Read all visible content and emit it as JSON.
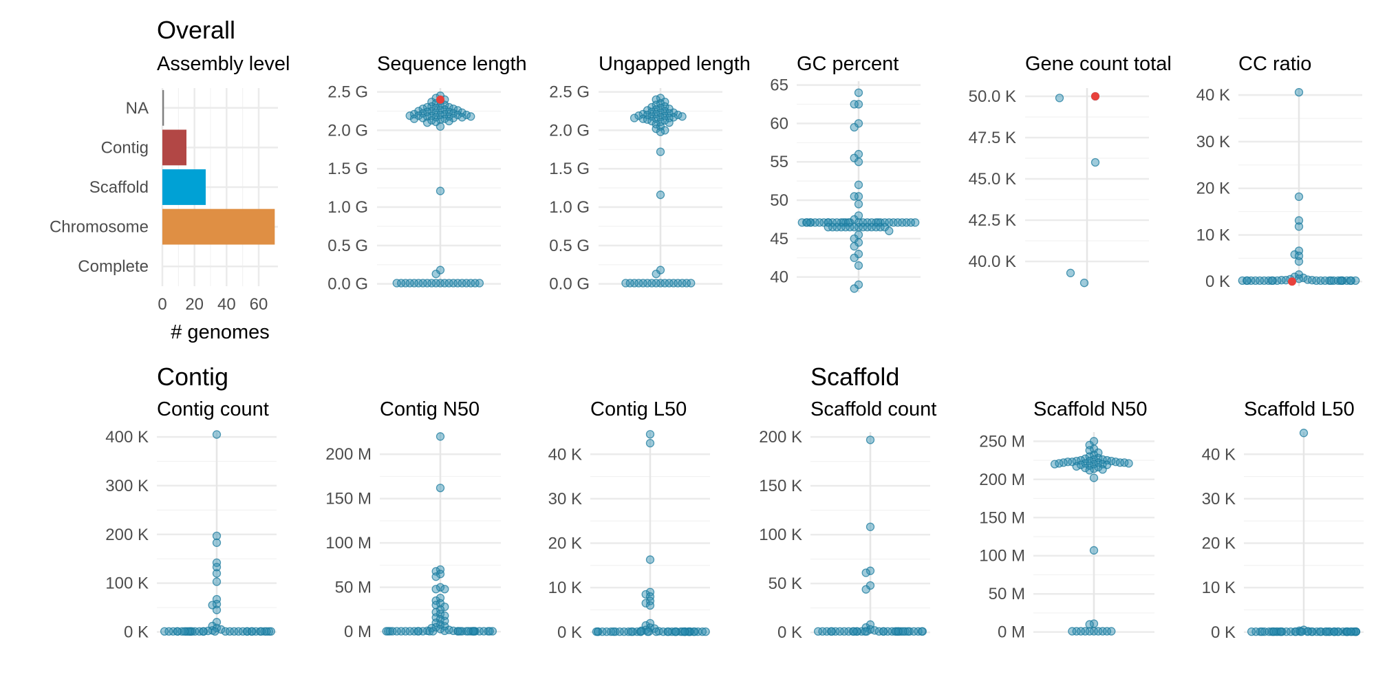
{
  "sections": [
    {
      "title": "Overall"
    },
    {
      "title": "Contig"
    },
    {
      "title": "Scaffold"
    }
  ],
  "colors": {
    "point": "#1b7a9c",
    "point_fill": "#2a8cb0",
    "highlight": "#e8413c",
    "grid": "#ebebeb",
    "bar_na": "#7f7f7f",
    "bar_contig": "#b24745",
    "bar_scaffold": "#00a1d5",
    "bar_chromosome": "#df8f44"
  },
  "chart_data": [
    {
      "id": "assembly_level",
      "type": "bar",
      "orientation": "horizontal",
      "title": "Assembly level",
      "xlabel": "# genomes",
      "ylabel": "",
      "categories": [
        "NA",
        "Contig",
        "Scaffold",
        "Chromosome",
        "Complete"
      ],
      "values": [
        1,
        15,
        27,
        70,
        0
      ],
      "bar_colors": [
        "#7f7f7f",
        "#b24745",
        "#00a1d5",
        "#df8f44",
        "#cccccc"
      ],
      "xlim": [
        0,
        72
      ],
      "xticks": [
        0,
        20,
        40,
        60
      ],
      "grid": true
    },
    {
      "id": "sequence_length",
      "type": "scatter",
      "title": "Sequence length",
      "xlabel": "",
      "ylabel": "",
      "ylim": [
        -0.03,
        2.55
      ],
      "ticks": [
        0,
        0.5,
        1.0,
        1.5,
        2.0,
        2.5
      ],
      "tick_labels": [
        "0.0 G",
        "0.5 G",
        "1.0 G",
        "1.5 G",
        "2.0 G",
        "2.5 G"
      ],
      "points": [
        2.45,
        2.42,
        2.4,
        2.38,
        2.37,
        2.35,
        2.33,
        2.32,
        2.31,
        2.3,
        2.3,
        2.29,
        2.28,
        2.28,
        2.27,
        2.26,
        2.26,
        2.25,
        2.25,
        2.24,
        2.24,
        2.23,
        2.23,
        2.22,
        2.22,
        2.21,
        2.21,
        2.2,
        2.2,
        2.2,
        2.19,
        2.19,
        2.19,
        2.18,
        2.18,
        2.18,
        2.17,
        2.17,
        2.16,
        2.16,
        2.15,
        2.15,
        2.14,
        2.13,
        2.12,
        2.11,
        2.1,
        2.05,
        1.21,
        0.18,
        0.13,
        0.01,
        0.01,
        0.01,
        0.01,
        0.01,
        0.01,
        0.01,
        0.01,
        0.01,
        0.01,
        0.01,
        0.01,
        0.01,
        0.01,
        0.01,
        0.01,
        0.01,
        0.01,
        0.01,
        0.01
      ],
      "highlight": [
        2.4
      ]
    },
    {
      "id": "ungapped_length",
      "type": "scatter",
      "title": "Ungapped length",
      "xlabel": "",
      "ylabel": "",
      "ylim": [
        -0.03,
        2.55
      ],
      "ticks": [
        0,
        0.5,
        1.0,
        1.5,
        2.0,
        2.5
      ],
      "tick_labels": [
        "0.0 G",
        "0.5 G",
        "1.0 G",
        "1.5 G",
        "2.0 G",
        "2.5 G"
      ],
      "points": [
        2.42,
        2.4,
        2.37,
        2.35,
        2.33,
        2.31,
        2.3,
        2.29,
        2.28,
        2.27,
        2.26,
        2.25,
        2.24,
        2.23,
        2.23,
        2.22,
        2.21,
        2.21,
        2.2,
        2.2,
        2.19,
        2.19,
        2.18,
        2.18,
        2.17,
        2.17,
        2.16,
        2.16,
        2.15,
        2.15,
        2.14,
        2.13,
        2.12,
        2.11,
        2.1,
        2.08,
        2.05,
        2.02,
        2.0,
        1.98,
        1.72,
        1.16,
        0.18,
        0.13,
        0.01,
        0.01,
        0.01,
        0.01,
        0.01,
        0.01,
        0.01,
        0.01,
        0.01,
        0.01,
        0.01,
        0.01,
        0.01,
        0.01,
        0.01,
        0.01
      ],
      "highlight": []
    },
    {
      "id": "gc_percent",
      "type": "scatter",
      "title": "GC percent",
      "xlabel": "",
      "ylabel": "",
      "ylim": [
        38,
        65.5
      ],
      "ticks": [
        40,
        45,
        50,
        55,
        60,
        65
      ],
      "tick_labels": [
        "40",
        "45",
        "50",
        "55",
        "60",
        "65"
      ],
      "points": [
        64,
        62.5,
        62.5,
        60,
        59.5,
        56,
        55.5,
        55,
        52,
        50.5,
        50.5,
        49.5,
        48,
        47.5,
        47.1,
        47.1,
        47.1,
        47.1,
        47.1,
        47.1,
        47.1,
        47.1,
        47.1,
        47.1,
        47.1,
        47.1,
        47.1,
        47.1,
        47.1,
        47.1,
        47.1,
        47.1,
        47.1,
        47.1,
        47.1,
        47.1,
        47.1,
        47.1,
        47.1,
        47.1,
        47.1,
        47.1,
        47.1,
        47.1,
        47.1,
        47.1,
        46.5,
        46.5,
        46.5,
        46.5,
        46.5,
        46.5,
        46.5,
        46.5,
        46.5,
        46.5,
        46.5,
        46.5,
        46.5,
        46.5,
        46,
        45.5,
        45,
        44.5,
        44,
        43,
        42.5,
        41.5,
        39,
        38.5
      ],
      "highlight": []
    },
    {
      "id": "gene_count_total",
      "type": "scatter",
      "title": "Gene count total",
      "xlabel": "",
      "ylabel": "",
      "ylim": [
        38.5,
        50.5
      ],
      "ticks": [
        40,
        42.5,
        45,
        47.5,
        50
      ],
      "tick_labels": [
        "40.0 K",
        "42.5 K",
        "45.0 K",
        "47.5 K",
        "50.0 K"
      ],
      "points": [
        49.9,
        50.0,
        46.0,
        39.3,
        38.7
      ],
      "offsets": [
        -1,
        0.3,
        0.3,
        -0.6,
        -0.1
      ],
      "highlight": [
        50.0
      ]
    },
    {
      "id": "cc_ratio",
      "type": "scatter",
      "title": "CC ratio",
      "xlabel": "",
      "ylabel": "",
      "ylim": [
        -1,
        41.5
      ],
      "ticks": [
        0,
        10,
        20,
        30,
        40
      ],
      "tick_labels": [
        "0 K",
        "10 K",
        "20 K",
        "30 K",
        "40 K"
      ],
      "points": [
        40.6,
        18.2,
        13.1,
        11.8,
        6.6,
        5.8,
        5.5,
        4.3,
        1.5,
        1.0,
        0.8,
        0.6,
        0.5,
        0.4,
        0.3,
        0.3,
        0.3,
        0.2,
        0.2,
        0.2,
        0.2,
        0.2,
        0.2,
        0.2,
        0.2,
        0.2,
        0.2,
        0.2,
        0.2,
        0.2,
        0.2,
        0.2,
        0.2,
        0.2,
        0.2,
        0.2,
        0.2,
        0.2,
        0.2,
        0.2,
        0.2,
        0.2
      ],
      "highlight": [
        0.0
      ]
    },
    {
      "id": "contig_count",
      "type": "scatter",
      "title": "Contig count",
      "xlabel": "",
      "ylabel": "",
      "ylim": [
        -5,
        410
      ],
      "ticks": [
        0,
        100,
        200,
        300,
        400
      ],
      "tick_labels": [
        "0 K",
        "100 K",
        "200 K",
        "300 K",
        "400 K"
      ],
      "points": [
        405,
        197,
        183,
        142,
        133,
        120,
        103,
        67,
        57,
        55,
        45,
        20,
        12,
        8,
        5,
        3,
        2,
        1,
        1,
        1,
        1,
        1,
        1,
        1,
        1,
        1,
        1,
        1,
        1,
        1,
        1,
        1,
        1,
        1,
        1,
        1,
        1,
        1,
        1,
        1,
        1,
        1,
        1,
        1,
        1,
        1,
        1,
        1,
        1,
        1
      ],
      "highlight": []
    },
    {
      "id": "contig_n50",
      "type": "scatter",
      "title": "Contig N50",
      "xlabel": "",
      "ylabel": "",
      "ylim": [
        -3,
        225
      ],
      "ticks": [
        0,
        50,
        100,
        150,
        200
      ],
      "tick_labels": [
        "0 M",
        "50 M",
        "100 M",
        "150 M",
        "200 M"
      ],
      "points": [
        220,
        162,
        70,
        68,
        65,
        62,
        50,
        48,
        48,
        38,
        35,
        32,
        30,
        28,
        25,
        22,
        20,
        18,
        16,
        14,
        12,
        10,
        8,
        6,
        5,
        4,
        3,
        2,
        1,
        1,
        1,
        0.5,
        0.5,
        0.5,
        0.5,
        0.5,
        0.5,
        0.5,
        0.5,
        0.5,
        0.5,
        0.5,
        0.5,
        0.5,
        0.5,
        0.5,
        0.5,
        0.5,
        0.5,
        0.5,
        0.5,
        0.5,
        0.5,
        0.5,
        0.5,
        0.5,
        0.5,
        0.5,
        0.5,
        0.5,
        0.5,
        0.5
      ],
      "highlight": []
    },
    {
      "id": "contig_l50",
      "type": "scatter",
      "title": "Contig L50",
      "xlabel": "",
      "ylabel": "",
      "ylim": [
        -0.5,
        45
      ],
      "ticks": [
        0,
        10,
        20,
        30,
        40
      ],
      "tick_labels": [
        "0 K",
        "10 K",
        "20 K",
        "30 K",
        "40 K"
      ],
      "points": [
        44.5,
        42.5,
        16.3,
        9,
        8.5,
        8,
        7,
        6.5,
        6,
        2,
        1.5,
        1,
        0.8,
        0.5,
        0.3,
        0.2,
        0.1,
        0.1,
        0.1,
        0.1,
        0.1,
        0.1,
        0.1,
        0.1,
        0.1,
        0.1,
        0.1,
        0.1,
        0.1,
        0.1,
        0.1,
        0.1,
        0.1,
        0.1,
        0.1,
        0.1,
        0.1,
        0.1,
        0.1,
        0.1,
        0.1,
        0.1,
        0.1,
        0.1,
        0.1,
        0.1,
        0.1,
        0.1,
        0.1,
        0.1,
        0.1,
        0.1,
        0.1,
        0.1,
        0.1,
        0.1
      ],
      "highlight": []
    },
    {
      "id": "scaffold_count",
      "type": "scatter",
      "title": "Scaffold count",
      "xlabel": "",
      "ylabel": "",
      "ylim": [
        -2,
        205
      ],
      "ticks": [
        0,
        50,
        100,
        150,
        200
      ],
      "tick_labels": [
        "0 K",
        "50 K",
        "100 K",
        "150 K",
        "200 K"
      ],
      "points": [
        197,
        108,
        63,
        61,
        48,
        44,
        8,
        5,
        3,
        2,
        1,
        1,
        1,
        1,
        1,
        1,
        1,
        1,
        1,
        1,
        1,
        1,
        1,
        1,
        1,
        1,
        1,
        1,
        1,
        1,
        1,
        1,
        1,
        1,
        1,
        1,
        1,
        1,
        1,
        1,
        1,
        1,
        1,
        1
      ],
      "highlight": []
    },
    {
      "id": "scaffold_n50",
      "type": "scatter",
      "title": "Scaffold N50",
      "xlabel": "",
      "ylabel": "",
      "ylim": [
        -3,
        262
      ],
      "ticks": [
        0,
        50,
        100,
        150,
        200,
        250
      ],
      "tick_labels": [
        "0 M",
        "50 M",
        "100 M",
        "150 M",
        "200 M",
        "250 M"
      ],
      "points": [
        250,
        245,
        240,
        238,
        235,
        232,
        230,
        228,
        227,
        226,
        226,
        225,
        225,
        224,
        224,
        224,
        223,
        223,
        223,
        222,
        222,
        222,
        222,
        221,
        221,
        221,
        220,
        220,
        220,
        219,
        219,
        218,
        217,
        216,
        215,
        214,
        213,
        212,
        202,
        107,
        11,
        10,
        1,
        1,
        1,
        1,
        1,
        1,
        1,
        1,
        1,
        1
      ],
      "highlight": []
    },
    {
      "id": "scaffold_l50",
      "type": "scatter",
      "title": "Scaffold L50",
      "xlabel": "",
      "ylabel": "",
      "ylim": [
        -0.5,
        45
      ],
      "ticks": [
        0,
        10,
        20,
        30,
        40
      ],
      "tick_labels": [
        "0 K",
        "10 K",
        "20 K",
        "30 K",
        "40 K"
      ],
      "points": [
        44.8,
        0.5,
        0.3,
        0.2,
        0.1,
        0.1,
        0.1,
        0.1,
        0.1,
        0.1,
        0.1,
        0.1,
        0.1,
        0.1,
        0.1,
        0.1,
        0.1,
        0.1,
        0.1,
        0.1,
        0.1,
        0.1,
        0.1,
        0.1,
        0.1,
        0.1,
        0.1,
        0.1,
        0.1,
        0.1,
        0.1,
        0.1,
        0.1,
        0.1,
        0.1,
        0.1,
        0.1,
        0.1,
        0.1,
        0.1,
        0.1,
        0.1,
        0.1,
        0.1,
        0.1,
        0.1,
        0.1,
        0.1,
        0.1,
        0.1
      ],
      "highlight": []
    }
  ]
}
